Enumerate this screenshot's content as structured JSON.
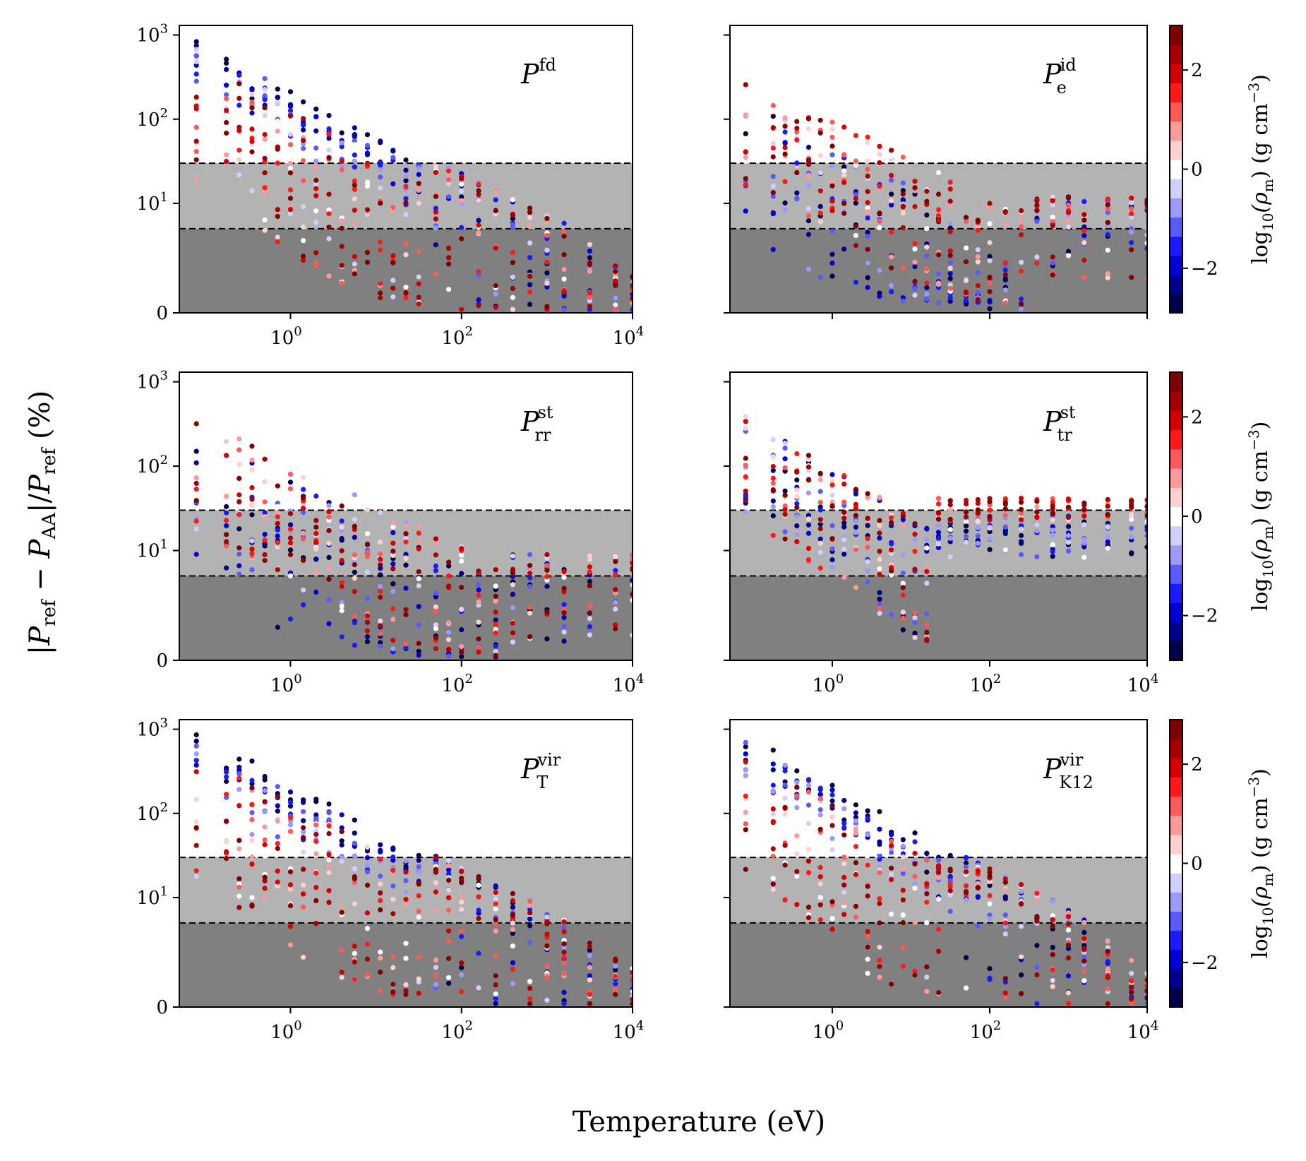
{
  "figure": {
    "xlabel": "Temperature (eV)",
    "ylabel": "|P_ref − P_AA|/P_ref (%)",
    "ylabel_parts": {
      "bar": "|",
      "p1": "P",
      "sub1": "ref",
      "minus": " − ",
      "p2": "P",
      "sub2": "AA",
      "bar2": "|/",
      "p3": "P",
      "sub3": "ref",
      "unit": " (%)"
    }
  },
  "colorbar": {
    "label": "log10(ρm) (g cm−3)",
    "label_parts": {
      "log": "log",
      "sub": "10",
      "open": "(ρ",
      "msub": "m",
      "close": ") (g cm",
      "exp": "−3",
      "end": ")"
    },
    "ticks": [
      "2",
      "0",
      "−2"
    ],
    "tick_values": [
      2,
      0,
      -2
    ],
    "range": [
      -2.9,
      2.9
    ],
    "colors": [
      "#00004c",
      "#00008f",
      "#0000d3",
      "#1a1aff",
      "#5a5aff",
      "#9a9aff",
      "#d0d0ff",
      "#ffffff",
      "#ffd0d0",
      "#ff9a9a",
      "#ff5a5a",
      "#ff1a1a",
      "#d30000",
      "#a40000",
      "#800000"
    ]
  },
  "axes": {
    "x_tick_labels": [
      {
        "base": "10",
        "exp": "0",
        "value": 0
      },
      {
        "base": "10",
        "exp": "2",
        "value": 2
      },
      {
        "base": "10",
        "exp": "4",
        "value": 4
      }
    ],
    "y_tick_labels": [
      {
        "base": "10",
        "exp": "3",
        "value": 1000
      },
      {
        "base": "10",
        "exp": "2",
        "value": 100
      },
      {
        "base": "10",
        "exp": "1",
        "value": 10
      },
      {
        "base": "0",
        "exp": "",
        "value": 0
      }
    ],
    "x_log_range": [
      -1.3,
      4.0
    ],
    "y_scale": "symlog (linthresh 5)",
    "thresholds_percent": [
      5,
      30
    ]
  },
  "chart_data": [
    {
      "type": "scatter",
      "id": "fd",
      "label_main": "P",
      "label_sup": "fd",
      "label_sub": "",
      "x": "temperature (eV, log)",
      "y": "relative error (%)",
      "pattern": "high-low",
      "show_x_ticks": true,
      "show_y_ticks": true,
      "show_colorbar": false
    },
    {
      "type": "scatter",
      "id": "eid",
      "label_main": "P",
      "label_sup": "id",
      "label_sub": "e",
      "x": "temperature (eV, log)",
      "y": "relative error (%)",
      "pattern": "medium-spread",
      "show_x_ticks": false,
      "show_y_ticks": false,
      "show_colorbar": true
    },
    {
      "type": "scatter",
      "id": "strr",
      "label_main": "P",
      "label_sup": "st",
      "label_sub": "rr",
      "x": "temperature (eV, log)",
      "y": "relative error (%)",
      "pattern": "medium-decay",
      "show_x_ticks": true,
      "show_y_ticks": true,
      "show_colorbar": false
    },
    {
      "type": "scatter",
      "id": "sttr",
      "label_main": "P",
      "label_sup": "st",
      "label_sub": "tr",
      "x": "temperature (eV, log)",
      "y": "relative error (%)",
      "pattern": "plateau",
      "show_x_ticks": true,
      "show_y_ticks": false,
      "show_colorbar": true
    },
    {
      "type": "scatter",
      "id": "virT",
      "label_main": "P",
      "label_sup": "vir",
      "label_sub": "T",
      "x": "temperature (eV, log)",
      "y": "relative error (%)",
      "pattern": "high-low",
      "show_x_ticks": true,
      "show_y_ticks": true,
      "show_colorbar": false
    },
    {
      "type": "scatter",
      "id": "virK",
      "label_main": "P",
      "label_sup": "vir",
      "label_sub": "K12",
      "x": "temperature (eV, log)",
      "y": "relative error (%)",
      "pattern": "high-cluster",
      "show_x_ticks": true,
      "show_y_ticks": false,
      "show_colorbar": true
    }
  ]
}
